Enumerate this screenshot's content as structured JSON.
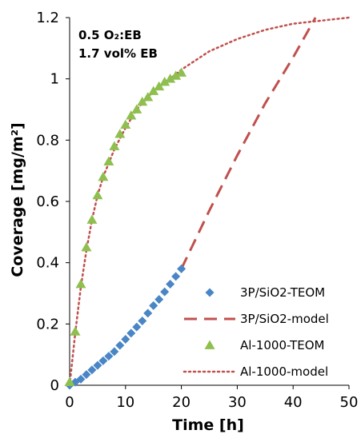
{
  "chart_data": {
    "type": "scatter",
    "xlabel": "Time [h]",
    "ylabel": "Coverage [mg/m²]",
    "xlim": [
      0,
      50
    ],
    "ylim": [
      0,
      1.2
    ],
    "x_ticks": [
      "0",
      "10",
      "20",
      "30",
      "40",
      "50"
    ],
    "y_ticks": [
      "0",
      "0.2",
      "0.4",
      "0.6",
      "0.8",
      "1",
      "1.2"
    ],
    "annotations": [
      "0.5 O₂:EB",
      "1.7 vol% EB"
    ],
    "legend_position": "bottom-right",
    "grid": false,
    "series": [
      {
        "name": "3P/SiO2-TEOM",
        "style": "markers",
        "marker": "diamond",
        "color": "#4a86c5",
        "x": [
          0,
          1,
          2,
          3,
          4,
          5,
          6,
          7,
          8,
          9,
          10,
          11,
          12,
          13,
          14,
          15,
          16,
          17,
          18,
          19,
          20
        ],
        "y": [
          0.0,
          0.01,
          0.02,
          0.035,
          0.05,
          0.065,
          0.08,
          0.095,
          0.11,
          0.13,
          0.15,
          0.17,
          0.19,
          0.21,
          0.235,
          0.26,
          0.28,
          0.305,
          0.33,
          0.355,
          0.38
        ]
      },
      {
        "name": "3P/SiO2-model",
        "style": "dashed",
        "color": "#c0504d",
        "x": [
          20,
          25,
          30,
          35,
          40,
          44
        ],
        "y": [
          0.38,
          0.57,
          0.75,
          0.92,
          1.07,
          1.2
        ]
      },
      {
        "name": "Al-1000-TEOM",
        "style": "markers",
        "marker": "triangle",
        "color": "#8fbf4f",
        "x": [
          0,
          1,
          2,
          3,
          4,
          5,
          6,
          7,
          8,
          9,
          10,
          11,
          12,
          13,
          14,
          15,
          16,
          17,
          18,
          19,
          20
        ],
        "y": [
          0.01,
          0.175,
          0.33,
          0.45,
          0.54,
          0.62,
          0.68,
          0.73,
          0.78,
          0.82,
          0.85,
          0.88,
          0.9,
          0.925,
          0.94,
          0.96,
          0.975,
          0.99,
          1.0,
          1.01,
          1.02
        ]
      },
      {
        "name": "Al-1000-model",
        "style": "dotted",
        "color": "#c0504d",
        "x": [
          0,
          1,
          2,
          3,
          4,
          5,
          6,
          8,
          10,
          12,
          15,
          18,
          20,
          25,
          30,
          35,
          40,
          45,
          50
        ],
        "y": [
          0,
          0.17,
          0.32,
          0.44,
          0.54,
          0.62,
          0.68,
          0.77,
          0.84,
          0.9,
          0.96,
          1.0,
          1.03,
          1.09,
          1.13,
          1.16,
          1.18,
          1.19,
          1.2
        ]
      }
    ]
  }
}
